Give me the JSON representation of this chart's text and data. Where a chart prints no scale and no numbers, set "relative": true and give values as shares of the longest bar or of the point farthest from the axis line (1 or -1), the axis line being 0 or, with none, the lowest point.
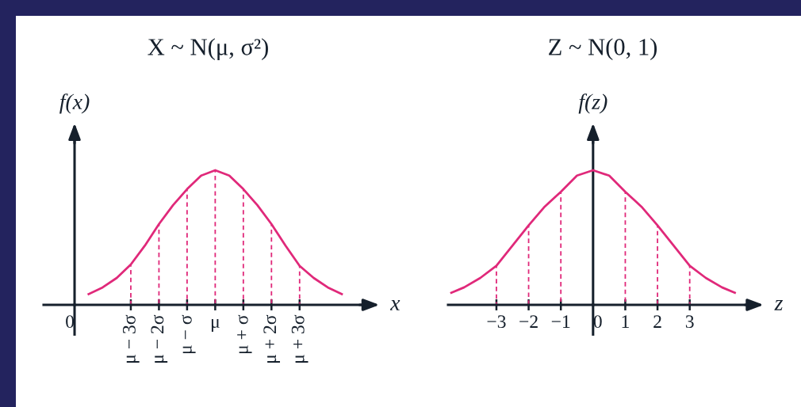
{
  "chart_data": [
    {
      "type": "line",
      "title": "X ~ N(μ, σ²)",
      "xlabel": "x",
      "ylabel": "f(x)",
      "relative": true,
      "categories": [
        "0",
        null,
        null,
        null,
        "μ − 3σ",
        null,
        "μ − 2σ",
        null,
        "μ − σ",
        null,
        "μ",
        null,
        "μ + σ",
        null,
        "μ + 2σ",
        null,
        "μ + 3σ",
        null,
        null,
        null
      ],
      "series": [
        {
          "color": "#e0297a",
          "values": [
            null,
            0.08,
            0.13,
            0.2,
            0.3,
            0.44,
            0.6,
            0.74,
            0.86,
            0.96,
            1,
            0.96,
            0.86,
            0.74,
            0.6,
            0.44,
            0.29,
            0.2,
            0.13,
            0.08
          ]
        },
        {
          "type": "bar",
          "line_style": "dashed",
          "color": "#e0297a",
          "values": [
            null,
            null,
            null,
            null,
            0.3,
            null,
            0.6,
            null,
            0.86,
            null,
            1,
            null,
            0.86,
            null,
            0.6,
            null,
            0.29,
            null,
            null,
            null
          ]
        }
      ]
    },
    {
      "type": "line",
      "title": "Z ~ N(0, 1)",
      "xlabel": "z",
      "ylabel": "f(z)",
      "relative": true,
      "xlim": [
        -4.5,
        5.1
      ],
      "xticks": [
        -3,
        -2,
        -1,
        0,
        1,
        2,
        3
      ],
      "series": [
        {
          "color": "#e0297a",
          "x": [
            -4.4,
            -4,
            -3.5,
            -3,
            -2.5,
            -2,
            -1.5,
            -1,
            -0.5,
            0,
            0.5,
            1,
            1.5,
            2,
            2.5,
            3,
            3.5,
            4,
            4.4
          ],
          "values": [
            0.09,
            0.13,
            0.2,
            0.29,
            0.44,
            0.59,
            0.73,
            0.84,
            0.96,
            1,
            0.96,
            0.84,
            0.73,
            0.59,
            0.44,
            0.29,
            0.2,
            0.13,
            0.09
          ]
        },
        {
          "type": "bar",
          "line_style": "dashed",
          "color": "#e0297a",
          "x": [
            -3,
            -2,
            -1,
            1,
            2,
            3
          ],
          "values": [
            0.29,
            0.59,
            0.84,
            0.84,
            0.59,
            0.29
          ]
        }
      ]
    }
  ]
}
